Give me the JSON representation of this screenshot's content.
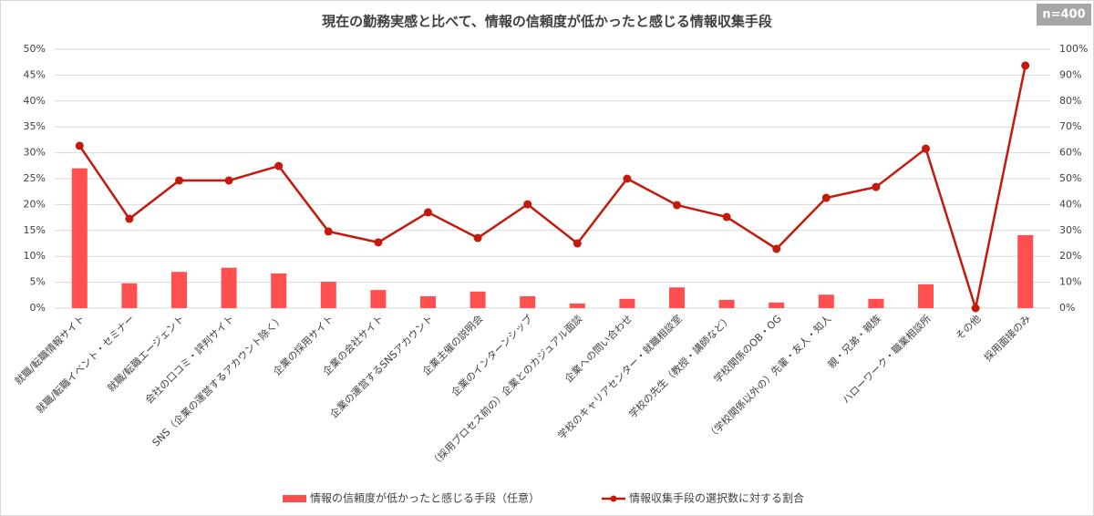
{
  "chart_data": {
    "type": "bar_line",
    "title": "現在の勤務実感と比べて、情報の信頼度が低かったと感じる情報収集手段",
    "annotation": "n=400",
    "categories": [
      "就職/転職情報サイト",
      "就職/転職イベント・セミナー",
      "就職/転職エージェント",
      "会社の口コミ・評判サイト",
      "SNS（企業の運営するアカウント除く）",
      "企業の採用サイト",
      "企業の会社サイト",
      "企業の運営するSNSアカウント",
      "企業主催の説明会",
      "企業のインターンシップ",
      "（採用プロセス前の）企業とのカジュアル面談",
      "企業への問い合わせ",
      "学校のキャリアセンター・就職相談室",
      "学校の先生（教授・講師など）",
      "学校関係のOB・OG",
      "（学校関係以外の）先輩・友人・知人",
      "親・兄弟・親族",
      "ハローワーク・職業相談所",
      "その他",
      "採用面接のみ"
    ],
    "series": [
      {
        "name": "情報の信頼度が低かったと感じる手段（任意）",
        "type": "bar",
        "color": "#ff4f4f",
        "values": [
          27,
          4.8,
          7.0,
          7.8,
          6.7,
          5.1,
          3.5,
          2.3,
          3.2,
          2.3,
          0.9,
          1.8,
          4.0,
          1.6,
          1.1,
          2.6,
          1.8,
          4.6,
          0,
          14.1
        ]
      },
      {
        "name": "情報収集手段の選択数に対する割合",
        "type": "line",
        "axis": "y2",
        "color": "#c41a0e",
        "values": [
          62.7,
          34.5,
          49.3,
          49.3,
          54.9,
          29.6,
          25.4,
          37.0,
          27.1,
          40.1,
          25.0,
          50.0,
          39.8,
          35.2,
          22.9,
          42.6,
          46.8,
          61.6,
          0,
          93.7
        ]
      }
    ],
    "ylim": [
      0,
      50
    ],
    "yticks": [
      {
        "value": 0,
        "label": "0%"
      },
      {
        "value": 5,
        "label": "5%"
      },
      {
        "value": 10,
        "label": "10%"
      },
      {
        "value": 15,
        "label": "15%"
      },
      {
        "value": 20,
        "label": "20%"
      },
      {
        "value": 25,
        "label": "25%"
      },
      {
        "value": 30,
        "label": "30%"
      },
      {
        "value": 35,
        "label": "35%"
      },
      {
        "value": 40,
        "label": "40%"
      },
      {
        "value": 45,
        "label": "45%"
      },
      {
        "value": 50,
        "label": "50%"
      }
    ],
    "y2lim": [
      0,
      100
    ],
    "y2ticks": [
      {
        "value": 0,
        "label": "0%"
      },
      {
        "value": 10,
        "label": "10%"
      },
      {
        "value": 20,
        "label": "20%"
      },
      {
        "value": 30,
        "label": "30%"
      },
      {
        "value": 40,
        "label": "40%"
      },
      {
        "value": 50,
        "label": "50%"
      },
      {
        "value": 60,
        "label": "60%"
      },
      {
        "value": 70,
        "label": "70%"
      },
      {
        "value": 80,
        "label": "80%"
      },
      {
        "value": 90,
        "label": "90%"
      },
      {
        "value": 100,
        "label": "100%"
      }
    ],
    "grid": true,
    "legend": "bottom"
  }
}
